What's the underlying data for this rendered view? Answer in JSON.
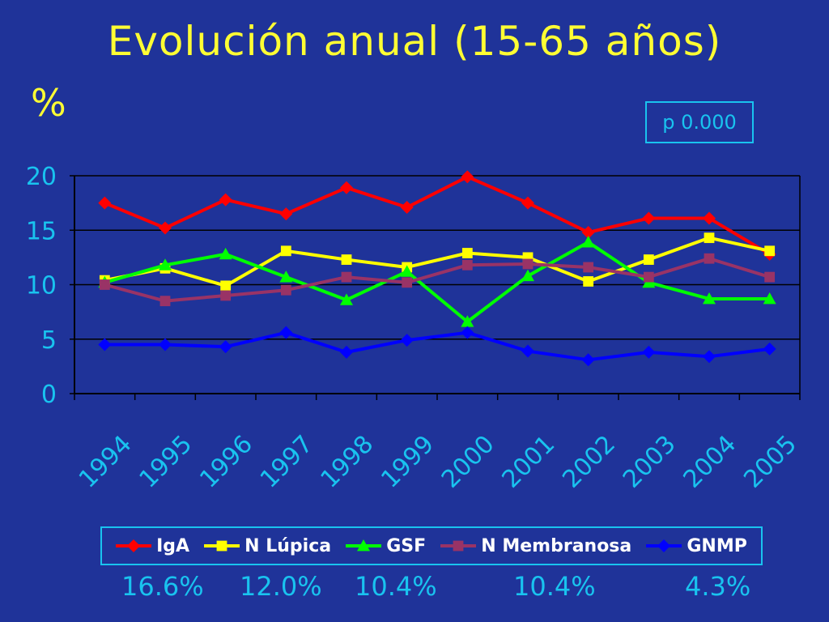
{
  "slide": {
    "title": "Evolución anual (15-65 años)",
    "unit_label": "%",
    "p_value": "p 0.000",
    "summary_values": [
      "16.6%",
      "12.0%",
      "10.4%",
      "10.4%",
      "4.3%"
    ]
  },
  "colors": {
    "background": "#1f3399",
    "title": "#ffff33",
    "axis_text": "#19c3ef",
    "grid": "#000000"
  },
  "chart_data": {
    "type": "line",
    "title": "",
    "xlabel": "",
    "ylabel": "%",
    "ylim": [
      0,
      20
    ],
    "yticks": [
      0,
      5,
      10,
      15,
      20
    ],
    "grid": true,
    "legend_position": "bottom",
    "categories": [
      "1994",
      "1995",
      "1996",
      "1997",
      "1998",
      "1999",
      "2000",
      "2001",
      "2002",
      "2003",
      "2004",
      "2005"
    ],
    "series": [
      {
        "name": "IgA",
        "color": "#ff0000",
        "marker": "diamond",
        "values": [
          17.5,
          15.2,
          17.8,
          16.5,
          18.9,
          17.1,
          19.9,
          17.5,
          14.8,
          16.1,
          16.1,
          12.8
        ]
      },
      {
        "name": "N Lúpica",
        "color": "#ffff00",
        "marker": "square",
        "values": [
          10.4,
          11.5,
          9.9,
          13.1,
          12.3,
          11.6,
          12.9,
          12.5,
          10.3,
          12.3,
          14.3,
          13.1
        ]
      },
      {
        "name": "GSF",
        "color": "#00ff00",
        "marker": "triangle",
        "values": [
          10.2,
          11.8,
          12.8,
          10.7,
          8.6,
          11.2,
          6.6,
          10.8,
          13.9,
          10.2,
          8.7,
          8.7
        ]
      },
      {
        "name": "N Membranosa",
        "color": "#993366",
        "marker": "square",
        "values": [
          10.0,
          8.5,
          9.0,
          9.5,
          10.7,
          10.2,
          11.8,
          11.9,
          11.6,
          10.7,
          12.4,
          10.7
        ]
      },
      {
        "name": "GNMP",
        "color": "#0000ff",
        "marker": "diamond",
        "values": [
          4.5,
          4.5,
          4.3,
          5.6,
          3.8,
          4.9,
          5.6,
          3.9,
          3.1,
          3.8,
          3.4,
          4.1
        ]
      }
    ]
  }
}
